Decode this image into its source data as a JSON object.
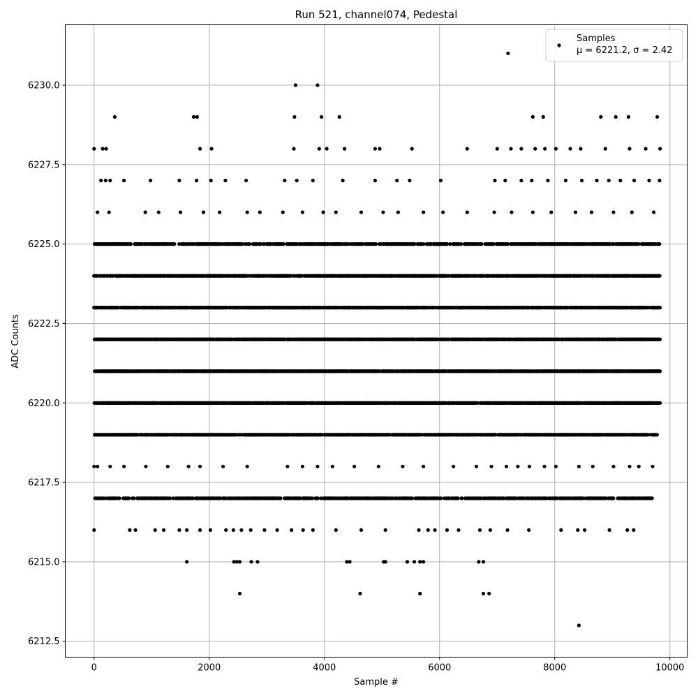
{
  "chart_data": {
    "type": "scatter",
    "title": "Run 521, channel074, Pedestal",
    "xlabel": "Sample #",
    "ylabel": "ADC Counts",
    "xlim": [
      -500,
      10300
    ],
    "ylim": [
      6212.0,
      6231.9
    ],
    "xticks": [
      0,
      2000,
      4000,
      6000,
      8000,
      10000
    ],
    "xtick_labels": [
      "0",
      "2000",
      "4000",
      "6000",
      "8000",
      "10000"
    ],
    "yticks": [
      6212.5,
      6215.0,
      6217.5,
      6220.0,
      6222.5,
      6225.0,
      6227.5,
      6230.0
    ],
    "ytick_labels": [
      "6212.5",
      "6215.0",
      "6217.5",
      "6220.0",
      "6222.5",
      "6225.0",
      "6227.5",
      "6230.0"
    ],
    "grid": true,
    "legend_position": "top-right",
    "series": [
      {
        "name": "Samples",
        "label_line2": "μ = 6221.2, σ = 2.42",
        "color": "#000000",
        "marker": "circle",
        "dense_rows": [
          {
            "y": 6225,
            "x_range": [
              0,
              9830
            ],
            "step": 12
          },
          {
            "y": 6224,
            "x_range": [
              0,
              9830
            ],
            "step": 8
          },
          {
            "y": 6223,
            "x_range": [
              0,
              9830
            ],
            "step": 7
          },
          {
            "y": 6222,
            "x_range": [
              0,
              9830
            ],
            "step": 6
          },
          {
            "y": 6221,
            "x_range": [
              0,
              9830
            ],
            "step": 5
          },
          {
            "y": 6220,
            "x_range": [
              0,
              9830
            ],
            "step": 7
          },
          {
            "y": 6219,
            "x_range": [
              0,
              9780
            ],
            "step": 8
          },
          {
            "y": 6217,
            "x_range": [
              20,
              9720
            ],
            "step": 14
          }
        ],
        "points": [
          [
            0,
            6228
          ],
          [
            150,
            6228
          ],
          [
            210,
            6228
          ],
          [
            360,
            6229
          ],
          [
            1730,
            6229
          ],
          [
            1790,
            6229
          ],
          [
            1840,
            6228
          ],
          [
            2040,
            6228
          ],
          [
            3470,
            6228
          ],
          [
            3480,
            6229
          ],
          [
            3500,
            6230
          ],
          [
            3880,
            6230
          ],
          [
            3910,
            6228
          ],
          [
            3950,
            6229
          ],
          [
            4040,
            6228
          ],
          [
            4260,
            6229
          ],
          [
            4350,
            6228
          ],
          [
            4880,
            6228
          ],
          [
            4960,
            6228
          ],
          [
            5520,
            6228
          ],
          [
            6480,
            6228
          ],
          [
            7000,
            6228
          ],
          [
            7190,
            6231
          ],
          [
            7240,
            6228
          ],
          [
            7420,
            6228
          ],
          [
            7620,
            6229
          ],
          [
            7660,
            6228
          ],
          [
            7800,
            6229
          ],
          [
            7830,
            6228
          ],
          [
            8020,
            6228
          ],
          [
            8270,
            6228
          ],
          [
            8450,
            6228
          ],
          [
            8800,
            6229
          ],
          [
            8880,
            6228
          ],
          [
            9060,
            6229
          ],
          [
            9280,
            6229
          ],
          [
            9300,
            6228
          ],
          [
            9580,
            6228
          ],
          [
            9780,
            6229
          ],
          [
            9830,
            6228
          ],
          [
            120,
            6227
          ],
          [
            200,
            6227
          ],
          [
            280,
            6227
          ],
          [
            520,
            6227
          ],
          [
            980,
            6227
          ],
          [
            1480,
            6227
          ],
          [
            1780,
            6227
          ],
          [
            2030,
            6227
          ],
          [
            2280,
            6227
          ],
          [
            2640,
            6227
          ],
          [
            3310,
            6227
          ],
          [
            3520,
            6227
          ],
          [
            3800,
            6227
          ],
          [
            4320,
            6227
          ],
          [
            4880,
            6227
          ],
          [
            5260,
            6227
          ],
          [
            5480,
            6227
          ],
          [
            6020,
            6227
          ],
          [
            6960,
            6227
          ],
          [
            7140,
            6227
          ],
          [
            7420,
            6227
          ],
          [
            7600,
            6227
          ],
          [
            7880,
            6227
          ],
          [
            8190,
            6227
          ],
          [
            8470,
            6227
          ],
          [
            8730,
            6227
          ],
          [
            8940,
            6227
          ],
          [
            9140,
            6227
          ],
          [
            9380,
            6227
          ],
          [
            9640,
            6227
          ],
          [
            9820,
            6227
          ],
          [
            60,
            6226
          ],
          [
            260,
            6226
          ],
          [
            890,
            6226
          ],
          [
            1120,
            6226
          ],
          [
            1500,
            6226
          ],
          [
            1900,
            6226
          ],
          [
            2180,
            6226
          ],
          [
            2660,
            6226
          ],
          [
            2880,
            6226
          ],
          [
            3280,
            6226
          ],
          [
            3620,
            6226
          ],
          [
            3980,
            6226
          ],
          [
            4200,
            6226
          ],
          [
            4640,
            6226
          ],
          [
            5020,
            6226
          ],
          [
            5280,
            6226
          ],
          [
            5720,
            6226
          ],
          [
            6060,
            6226
          ],
          [
            6480,
            6226
          ],
          [
            6950,
            6226
          ],
          [
            7250,
            6226
          ],
          [
            7620,
            6226
          ],
          [
            7940,
            6226
          ],
          [
            8360,
            6226
          ],
          [
            8640,
            6226
          ],
          [
            9020,
            6226
          ],
          [
            9340,
            6226
          ],
          [
            9720,
            6226
          ],
          [
            0,
            6218
          ],
          [
            60,
            6218
          ],
          [
            280,
            6218
          ],
          [
            520,
            6218
          ],
          [
            900,
            6218
          ],
          [
            1280,
            6218
          ],
          [
            1640,
            6218
          ],
          [
            1840,
            6218
          ],
          [
            2240,
            6218
          ],
          [
            2660,
            6218
          ],
          [
            3360,
            6218
          ],
          [
            3620,
            6218
          ],
          [
            3880,
            6218
          ],
          [
            4140,
            6218
          ],
          [
            4520,
            6218
          ],
          [
            4940,
            6218
          ],
          [
            5360,
            6218
          ],
          [
            5720,
            6218
          ],
          [
            6240,
            6218
          ],
          [
            6640,
            6218
          ],
          [
            6900,
            6218
          ],
          [
            7160,
            6218
          ],
          [
            7360,
            6218
          ],
          [
            7560,
            6218
          ],
          [
            7820,
            6218
          ],
          [
            8020,
            6218
          ],
          [
            8420,
            6218
          ],
          [
            8660,
            6218
          ],
          [
            9020,
            6218
          ],
          [
            9300,
            6218
          ],
          [
            9460,
            6218
          ],
          [
            9700,
            6218
          ],
          [
            0,
            6216
          ],
          [
            620,
            6216
          ],
          [
            720,
            6216
          ],
          [
            1060,
            6216
          ],
          [
            1210,
            6216
          ],
          [
            1480,
            6216
          ],
          [
            1610,
            6216
          ],
          [
            1840,
            6216
          ],
          [
            2020,
            6216
          ],
          [
            2290,
            6216
          ],
          [
            2420,
            6216
          ],
          [
            2560,
            6216
          ],
          [
            2720,
            6216
          ],
          [
            2960,
            6216
          ],
          [
            3180,
            6216
          ],
          [
            3430,
            6216
          ],
          [
            3630,
            6216
          ],
          [
            3800,
            6216
          ],
          [
            4200,
            6216
          ],
          [
            4640,
            6216
          ],
          [
            5060,
            6216
          ],
          [
            5640,
            6216
          ],
          [
            5800,
            6216
          ],
          [
            5920,
            6216
          ],
          [
            6130,
            6216
          ],
          [
            6330,
            6216
          ],
          [
            6700,
            6216
          ],
          [
            6880,
            6216
          ],
          [
            7180,
            6216
          ],
          [
            7550,
            6216
          ],
          [
            8110,
            6216
          ],
          [
            8400,
            6216
          ],
          [
            8520,
            6216
          ],
          [
            8950,
            6216
          ],
          [
            9260,
            6216
          ],
          [
            9370,
            6216
          ],
          [
            1610,
            6215
          ],
          [
            2430,
            6215
          ],
          [
            2480,
            6215
          ],
          [
            2530,
            6215
          ],
          [
            2730,
            6215
          ],
          [
            2840,
            6215
          ],
          [
            4390,
            6215
          ],
          [
            4440,
            6215
          ],
          [
            5030,
            6215
          ],
          [
            5060,
            6215
          ],
          [
            5440,
            6215
          ],
          [
            5560,
            6215
          ],
          [
            5660,
            6215
          ],
          [
            5720,
            6215
          ],
          [
            6680,
            6215
          ],
          [
            6760,
            6215
          ],
          [
            2530,
            6214
          ],
          [
            4620,
            6214
          ],
          [
            5660,
            6214
          ],
          [
            6760,
            6214
          ],
          [
            6860,
            6214
          ],
          [
            8420,
            6213
          ]
        ]
      }
    ]
  }
}
